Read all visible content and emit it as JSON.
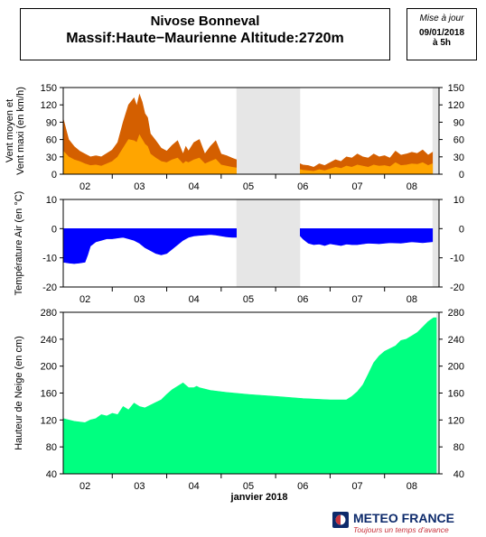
{
  "header": {
    "title_line1": "Nivose Bonneval",
    "title_line2": "Massif:Haute−Maurienne Altitude:2720m",
    "update_label": "Mise à jour",
    "update_date": "09/01/2018",
    "update_time": "à 5h"
  },
  "logo": {
    "name": "METEO FRANCE",
    "slogan": "Toujours un temps d'avance",
    "icon": "meteo-france-logo-icon"
  },
  "chart_data": [
    {
      "id": "wind",
      "type": "area",
      "ylabel": "Vent moyen et\nVent maxi (en km/h)",
      "ylim": [
        0,
        150
      ],
      "yticks": [
        0,
        30,
        60,
        90,
        120,
        150
      ],
      "xlim": [
        1.6,
        8.5
      ],
      "x_tick_labels": [
        {
          "x": 2,
          "label": "02"
        },
        {
          "x": 3,
          "label": "03"
        },
        {
          "x": 4,
          "label": "04"
        },
        {
          "x": 5,
          "label": "05"
        },
        {
          "x": 6,
          "label": "06"
        },
        {
          "x": 7,
          "label": "07"
        },
        {
          "x": 8,
          "label": "08"
        }
      ],
      "missing_ranges": [
        [
          4.78,
          5.95
        ],
        [
          8.38,
          8.5
        ]
      ],
      "series": [
        {
          "name": "Vent maxi",
          "color": "#d45f00",
          "x": [
            1.6,
            1.7,
            1.8,
            1.9,
            2.0,
            2.1,
            2.2,
            2.3,
            2.4,
            2.5,
            2.6,
            2.7,
            2.8,
            2.9,
            2.95,
            3.0,
            3.05,
            3.1,
            3.15,
            3.2,
            3.3,
            3.4,
            3.5,
            3.6,
            3.7,
            3.8,
            3.85,
            3.9,
            4.0,
            4.1,
            4.2,
            4.3,
            4.4,
            4.5,
            4.6,
            4.7,
            4.78,
            5.95,
            6.0,
            6.1,
            6.2,
            6.3,
            6.4,
            6.5,
            6.6,
            6.7,
            6.8,
            6.9,
            7.0,
            7.1,
            7.2,
            7.3,
            7.4,
            7.5,
            7.6,
            7.7,
            7.8,
            7.9,
            8.0,
            8.1,
            8.2,
            8.3,
            8.38
          ],
          "y": [
            96,
            60,
            48,
            40,
            35,
            30,
            32,
            30,
            36,
            42,
            55,
            90,
            120,
            132,
            118,
            138,
            125,
            105,
            98,
            70,
            58,
            45,
            40,
            50,
            58,
            35,
            48,
            40,
            55,
            60,
            35,
            48,
            58,
            35,
            32,
            28,
            25,
            18,
            16,
            15,
            12,
            18,
            15,
            20,
            25,
            22,
            30,
            28,
            35,
            30,
            28,
            35,
            30,
            32,
            28,
            40,
            33,
            35,
            38,
            36,
            42,
            33,
            38
          ]
        },
        {
          "name": "Vent moyen",
          "color": "#ffa500",
          "x": [
            1.6,
            1.7,
            1.8,
            1.9,
            2.0,
            2.1,
            2.2,
            2.3,
            2.4,
            2.5,
            2.6,
            2.7,
            2.8,
            2.9,
            2.95,
            3.0,
            3.05,
            3.1,
            3.15,
            3.2,
            3.3,
            3.4,
            3.5,
            3.6,
            3.7,
            3.8,
            3.85,
            3.9,
            4.0,
            4.1,
            4.2,
            4.3,
            4.4,
            4.5,
            4.6,
            4.7,
            4.78,
            5.95,
            6.0,
            6.1,
            6.2,
            6.3,
            6.4,
            6.5,
            6.6,
            6.7,
            6.8,
            6.9,
            7.0,
            7.1,
            7.2,
            7.3,
            7.4,
            7.5,
            7.6,
            7.7,
            7.8,
            7.9,
            8.0,
            8.1,
            8.2,
            8.3,
            8.38
          ],
          "y": [
            40,
            30,
            25,
            22,
            18,
            15,
            16,
            14,
            18,
            22,
            30,
            45,
            60,
            58,
            55,
            68,
            60,
            52,
            48,
            35,
            28,
            22,
            20,
            25,
            28,
            18,
            22,
            20,
            25,
            28,
            18,
            22,
            26,
            16,
            14,
            12,
            11,
            8,
            7,
            6,
            5,
            8,
            6,
            9,
            12,
            10,
            14,
            12,
            16,
            14,
            12,
            16,
            14,
            15,
            13,
            20,
            15,
            16,
            18,
            17,
            20,
            15,
            18
          ]
        }
      ]
    },
    {
      "id": "temperature",
      "type": "area",
      "ylabel": "Température Air (en °C)",
      "ylim": [
        -20,
        10
      ],
      "yticks": [
        -20,
        -10,
        0,
        10
      ],
      "xlim": [
        1.6,
        8.5
      ],
      "x_tick_labels": [
        {
          "x": 2,
          "label": "02"
        },
        {
          "x": 3,
          "label": "03"
        },
        {
          "x": 4,
          "label": "04"
        },
        {
          "x": 5,
          "label": "05"
        },
        {
          "x": 6,
          "label": "06"
        },
        {
          "x": 7,
          "label": "07"
        },
        {
          "x": 8,
          "label": "08"
        }
      ],
      "missing_ranges": [
        [
          4.78,
          5.95
        ],
        [
          8.38,
          8.5
        ]
      ],
      "series": [
        {
          "name": "Température",
          "color": "#0000ff",
          "baseline": 0,
          "x": [
            1.6,
            1.7,
            1.8,
            1.9,
            2.0,
            2.05,
            2.1,
            2.2,
            2.3,
            2.4,
            2.5,
            2.6,
            2.7,
            2.8,
            2.9,
            3.0,
            3.1,
            3.2,
            3.3,
            3.4,
            3.5,
            3.6,
            3.7,
            3.8,
            3.9,
            4.0,
            4.1,
            4.2,
            4.3,
            4.4,
            4.5,
            4.6,
            4.7,
            4.78,
            5.95,
            6.0,
            6.1,
            6.2,
            6.3,
            6.4,
            6.5,
            6.6,
            6.7,
            6.8,
            6.9,
            7.0,
            7.2,
            7.4,
            7.6,
            7.8,
            8.0,
            8.2,
            8.38
          ],
          "y": [
            -11.5,
            -11.8,
            -12,
            -11.8,
            -11.5,
            -9,
            -6,
            -4.5,
            -4,
            -3.5,
            -3.5,
            -3.2,
            -3,
            -3.5,
            -4,
            -5,
            -6.5,
            -7.5,
            -8.5,
            -9,
            -8.5,
            -7,
            -5.5,
            -4,
            -3,
            -2.5,
            -2.3,
            -2.2,
            -2,
            -2.2,
            -2.5,
            -2.8,
            -3,
            -3,
            -2.5,
            -3.5,
            -5,
            -5.5,
            -5.3,
            -5.8,
            -5.2,
            -5.5,
            -5.8,
            -5.3,
            -5.5,
            -5.5,
            -5,
            -5.2,
            -4.8,
            -5,
            -4.5,
            -4.8,
            -4.5
          ]
        }
      ]
    },
    {
      "id": "snow",
      "type": "area",
      "ylabel": "Hauteur de Neige (en cm)",
      "xlabel": "janvier 2018",
      "ylim": [
        40,
        280
      ],
      "yticks": [
        40,
        80,
        120,
        160,
        200,
        240,
        280
      ],
      "xlim": [
        1.6,
        8.5
      ],
      "x_tick_labels": [
        {
          "x": 2,
          "label": "02"
        },
        {
          "x": 3,
          "label": "03"
        },
        {
          "x": 4,
          "label": "04"
        },
        {
          "x": 5,
          "label": "05"
        },
        {
          "x": 6,
          "label": "06"
        },
        {
          "x": 7,
          "label": "07"
        },
        {
          "x": 8,
          "label": "08"
        }
      ],
      "missing_ranges": [
        [
          8.45,
          8.5
        ]
      ],
      "series": [
        {
          "name": "Hauteur de neige",
          "color": "#00ff80",
          "baseline": 40,
          "x": [
            1.6,
            1.7,
            1.8,
            2.0,
            2.1,
            2.2,
            2.3,
            2.4,
            2.5,
            2.6,
            2.7,
            2.8,
            2.9,
            3.0,
            3.1,
            3.2,
            3.3,
            3.4,
            3.5,
            3.6,
            3.7,
            3.8,
            3.9,
            4.0,
            4.05,
            4.1,
            4.2,
            4.3,
            4.4,
            4.5,
            4.6,
            5.0,
            5.5,
            6.0,
            6.5,
            6.8,
            6.9,
            7.0,
            7.1,
            7.2,
            7.3,
            7.4,
            7.5,
            7.6,
            7.7,
            7.8,
            7.9,
            8.0,
            8.1,
            8.2,
            8.3,
            8.4,
            8.45
          ],
          "y": [
            122,
            120,
            118,
            116,
            120,
            122,
            128,
            126,
            130,
            128,
            140,
            135,
            145,
            140,
            138,
            142,
            146,
            150,
            158,
            165,
            170,
            175,
            168,
            168,
            170,
            168,
            166,
            164,
            163,
            162,
            161,
            158,
            155,
            152,
            150,
            150,
            155,
            162,
            172,
            188,
            205,
            215,
            222,
            226,
            230,
            238,
            240,
            245,
            250,
            258,
            266,
            272,
            272
          ]
        }
      ]
    }
  ]
}
